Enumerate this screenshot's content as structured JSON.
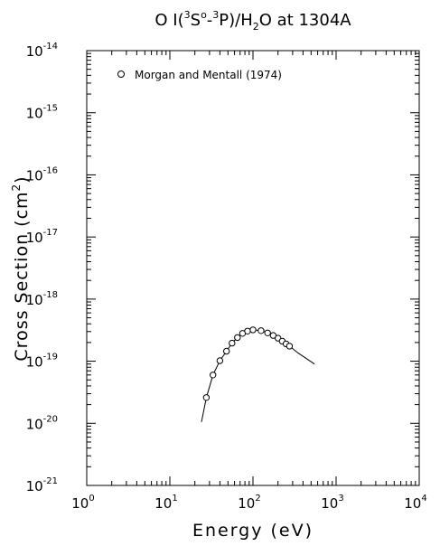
{
  "chart_data": {
    "type": "scatter",
    "title_parts": {
      "pre": "O I(",
      "sup1": "3",
      "mid1": "S",
      "deg": "o",
      "mid2": "-",
      "sup2": "3",
      "mid3": "P)/H",
      "sub": "2",
      "post": "O at 1304A"
    },
    "xlabel": "Energy (eV)",
    "ylabel_parts": {
      "pre": "Cross Section (cm",
      "sup": "2",
      "post": ")"
    },
    "xscale": "log",
    "yscale": "log",
    "xlim": [
      1,
      10000
    ],
    "ylim": [
      1e-21,
      1e-14
    ],
    "grid": false,
    "legend_position": "top-left",
    "x_ticks": [
      {
        "base": "10",
        "exp": "0",
        "value": 1
      },
      {
        "base": "10",
        "exp": "1",
        "value": 10
      },
      {
        "base": "10",
        "exp": "2",
        "value": 100
      },
      {
        "base": "10",
        "exp": "3",
        "value": 1000
      },
      {
        "base": "10",
        "exp": "4",
        "value": 10000
      }
    ],
    "y_ticks": [
      {
        "base": "10",
        "exp": "-21",
        "value": 1e-21
      },
      {
        "base": "10",
        "exp": "-20",
        "value": 1e-20
      },
      {
        "base": "10",
        "exp": "-19",
        "value": 1e-19
      },
      {
        "base": "10",
        "exp": "-18",
        "value": 1e-18
      },
      {
        "base": "10",
        "exp": "-17",
        "value": 1e-17
      },
      {
        "base": "10",
        "exp": "-16",
        "value": 1e-16
      },
      {
        "base": "10",
        "exp": "-15",
        "value": 1e-15
      },
      {
        "base": "10",
        "exp": "-14",
        "value": 1e-14
      }
    ],
    "series": [
      {
        "name": "Morgan and Mentall (1974)",
        "marker": "circle",
        "points": [
          [
            27.5,
            2.6e-20
          ],
          [
            33,
            6e-20
          ],
          [
            40,
            1.02e-19
          ],
          [
            48,
            1.45e-19
          ],
          [
            56,
            1.95e-19
          ],
          [
            65,
            2.4e-19
          ],
          [
            75,
            2.8e-19
          ],
          [
            86,
            3.05e-19
          ],
          [
            100,
            3.2e-19
          ],
          [
            125,
            3.1e-19
          ],
          [
            150,
            2.85e-19
          ],
          [
            175,
            2.6e-19
          ],
          [
            200,
            2.35e-19
          ],
          [
            225,
            2.1e-19
          ],
          [
            250,
            1.9e-19
          ],
          [
            275,
            1.75e-19
          ]
        ]
      }
    ],
    "fit_curve": [
      [
        24,
        1.05e-20
      ],
      [
        27.5,
        2.6e-20
      ],
      [
        33,
        6e-20
      ],
      [
        40,
        1.02e-19
      ],
      [
        48,
        1.45e-19
      ],
      [
        56,
        1.95e-19
      ],
      [
        65,
        2.4e-19
      ],
      [
        75,
        2.8e-19
      ],
      [
        86,
        3.05e-19
      ],
      [
        100,
        3.2e-19
      ],
      [
        125,
        3.1e-19
      ],
      [
        150,
        2.85e-19
      ],
      [
        200,
        2.35e-19
      ],
      [
        275,
        1.75e-19
      ],
      [
        350,
        1.35e-19
      ],
      [
        450,
        1.08e-19
      ],
      [
        550,
        9e-20
      ]
    ]
  }
}
